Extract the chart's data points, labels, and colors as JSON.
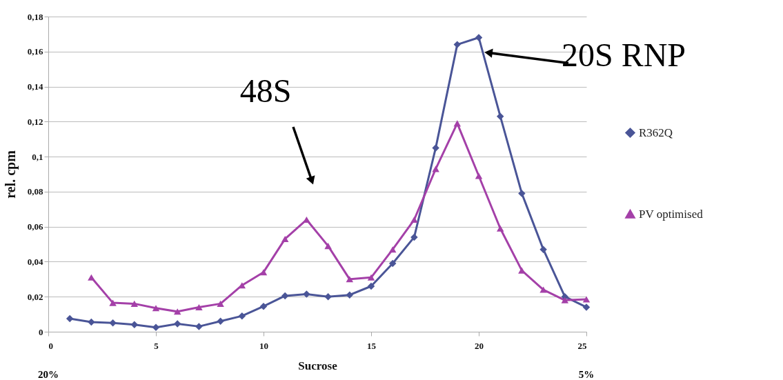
{
  "chart_data": {
    "type": "line",
    "xlabel": "Sucrose",
    "ylabel": "rel. cpm",
    "xlim": [
      0,
      25
    ],
    "xticks": [
      0,
      5,
      10,
      15,
      20,
      25
    ],
    "ylim": [
      0,
      0.18
    ],
    "yticks": [
      {
        "value": 0,
        "label": "0"
      },
      {
        "value": 0.02,
        "label": "0,02"
      },
      {
        "value": 0.04,
        "label": "0,04"
      },
      {
        "value": 0.06,
        "label": "0,06"
      },
      {
        "value": 0.08,
        "label": "0,08"
      },
      {
        "value": 0.1,
        "label": "0,1"
      },
      {
        "value": 0.12,
        "label": "0,12"
      },
      {
        "value": 0.14,
        "label": "0,14"
      },
      {
        "value": 0.16,
        "label": "0,16"
      },
      {
        "value": 0.18,
        "label": "0,18"
      }
    ],
    "grid": "y",
    "legend": "right",
    "line_style": "solid",
    "series": [
      {
        "name": "R362Q",
        "color": "#4a5597",
        "marker": "diamond",
        "x": [
          1,
          2,
          3,
          4,
          5,
          6,
          7,
          8,
          9,
          10,
          11,
          12,
          13,
          14,
          15,
          16,
          17,
          18,
          19,
          20,
          21,
          22,
          23,
          24,
          25
        ],
        "values": [
          0.0075,
          0.0055,
          0.005,
          0.004,
          0.0025,
          0.0045,
          0.003,
          0.006,
          0.009,
          0.0145,
          0.0205,
          0.0215,
          0.02,
          0.021,
          0.026,
          0.039,
          0.054,
          0.105,
          0.164,
          0.168,
          0.123,
          0.079,
          0.047,
          0.02,
          0.014
        ]
      },
      {
        "name": "PV optimised",
        "color": "#a440a8",
        "marker": "triangle",
        "x": [
          2,
          3,
          4,
          5,
          6,
          7,
          8,
          9,
          10,
          11,
          12,
          13,
          14,
          15,
          16,
          17,
          18,
          19,
          20,
          21,
          22,
          23,
          24,
          25
        ],
        "values": [
          0.031,
          0.0165,
          0.016,
          0.0135,
          0.0115,
          0.014,
          0.016,
          0.0265,
          0.034,
          0.053,
          0.064,
          0.049,
          0.03,
          0.031,
          0.047,
          0.064,
          0.093,
          0.119,
          0.089,
          0.059,
          0.035,
          0.024,
          0.018,
          0.0185
        ]
      }
    ],
    "annotations": [
      "48S",
      {
        "text": "20S RNP",
        "x": 20,
        "y": 0.168
      },
      "20%",
      "5%"
    ]
  }
}
